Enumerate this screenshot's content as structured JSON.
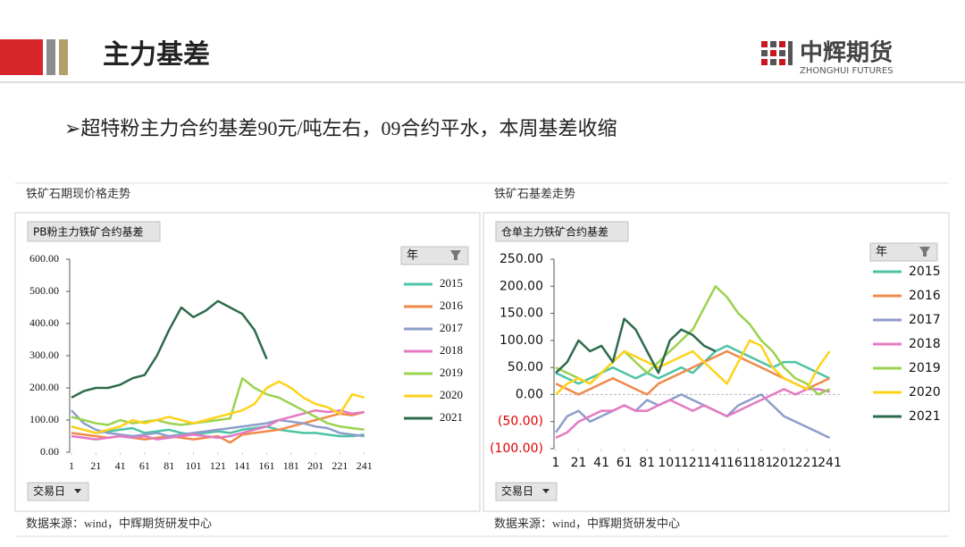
{
  "header": {
    "title": "主力基差",
    "logo": "中辉期货",
    "logo_sub": "ZHONGHUI FUTURES"
  },
  "bullet": "➢超特粉主力合约基差90元/吨左右，09合约平水，本周基差收缩",
  "chart_data": [
    {
      "type": "line",
      "caption": "铁矿石期现价格走势",
      "title": "PB粉主力铁矿合约基差",
      "legend_title": "年",
      "x_label": "交易日",
      "source": "数据来源：wind，中辉期货研发中心",
      "x": [
        1,
        11,
        21,
        31,
        41,
        51,
        61,
        71,
        81,
        91,
        101,
        111,
        121,
        131,
        141,
        151,
        161,
        171,
        181,
        191,
        201,
        211,
        221,
        231,
        241
      ],
      "xlim": [
        1,
        250
      ],
      "xticks": [
        1,
        21,
        41,
        61,
        81,
        101,
        121,
        141,
        161,
        181,
        201,
        221,
        241
      ],
      "ylim": [
        0,
        600
      ],
      "yticks": [
        {
          "value": 0,
          "label": "0.00"
        },
        {
          "value": 100,
          "label": "100.00"
        },
        {
          "value": 200,
          "label": "200.00"
        },
        {
          "value": 300,
          "label": "300.00"
        },
        {
          "value": 400,
          "label": "400.00"
        },
        {
          "value": 500,
          "label": "500.00"
        },
        {
          "value": 600,
          "label": "600.00"
        }
      ],
      "series": [
        {
          "name": "2015",
          "color": "#4dc3a5",
          "values": [
            80,
            70,
            60,
            65,
            70,
            75,
            60,
            65,
            70,
            60,
            55,
            60,
            65,
            60,
            70,
            75,
            80,
            70,
            65,
            60,
            60,
            55,
            50,
            50,
            55
          ]
        },
        {
          "name": "2016",
          "color": "#f08a4b",
          "values": [
            60,
            55,
            50,
            45,
            50,
            45,
            40,
            45,
            50,
            45,
            40,
            45,
            50,
            30,
            55,
            60,
            65,
            70,
            80,
            90,
            100,
            110,
            120,
            115,
            125
          ]
        },
        {
          "name": "2017",
          "color": "#8d9ec9",
          "values": [
            130,
            90,
            70,
            60,
            55,
            50,
            55,
            60,
            50,
            55,
            60,
            65,
            70,
            75,
            80,
            85,
            90,
            100,
            95,
            90,
            80,
            75,
            60,
            55,
            50
          ]
        },
        {
          "name": "2018",
          "color": "#e579c3",
          "values": [
            50,
            45,
            40,
            45,
            50,
            45,
            50,
            40,
            45,
            50,
            55,
            50,
            45,
            50,
            60,
            70,
            80,
            100,
            110,
            120,
            130,
            125,
            130,
            120,
            125
          ]
        },
        {
          "name": "2019",
          "color": "#9bd24e",
          "values": [
            110,
            100,
            90,
            85,
            100,
            90,
            95,
            100,
            90,
            85,
            90,
            95,
            100,
            105,
            230,
            200,
            180,
            170,
            150,
            130,
            110,
            90,
            80,
            75,
            70
          ]
        },
        {
          "name": "2020",
          "color": "#ffd21a",
          "values": [
            80,
            70,
            60,
            70,
            80,
            100,
            90,
            100,
            110,
            100,
            90,
            100,
            110,
            120,
            130,
            150,
            200,
            220,
            200,
            170,
            150,
            140,
            120,
            180,
            170
          ]
        },
        {
          "name": "2021",
          "color": "#2e6b4b",
          "values": [
            170,
            190,
            200,
            200,
            210,
            230,
            240,
            300,
            380,
            450,
            420,
            440,
            470,
            450,
            430,
            380,
            290,
            null,
            null,
            null,
            null,
            null,
            null,
            null,
            null
          ]
        }
      ]
    },
    {
      "type": "line",
      "caption": "铁矿石基差走势",
      "title": "仓单主力铁矿合约基差",
      "legend_title": "年",
      "x_label": "交易日",
      "source": "数据来源：wind，中辉期货研发中心",
      "zero_line": true,
      "negative_label_color": "#e00000",
      "x": [
        1,
        11,
        21,
        31,
        41,
        51,
        61,
        71,
        81,
        91,
        101,
        111,
        121,
        131,
        141,
        151,
        161,
        171,
        181,
        191,
        201,
        211,
        221,
        231,
        241
      ],
      "xlim": [
        1,
        250
      ],
      "xticks": [
        1,
        21,
        41,
        61,
        81,
        101,
        121,
        141,
        161,
        181,
        201,
        221,
        241
      ],
      "ylim": [
        -100,
        250
      ],
      "yticks": [
        {
          "value": -100,
          "label": "(100.00)"
        },
        {
          "value": -50,
          "label": "(50.00)"
        },
        {
          "value": 0,
          "label": "0.00"
        },
        {
          "value": 50,
          "label": "50.00"
        },
        {
          "value": 100,
          "label": "100.00"
        },
        {
          "value": 150,
          "label": "150.00"
        },
        {
          "value": 200,
          "label": "200.00"
        },
        {
          "value": 250,
          "label": "250.00"
        }
      ],
      "series": [
        {
          "name": "2015",
          "color": "#4dc3a5",
          "values": [
            40,
            30,
            20,
            30,
            40,
            50,
            40,
            30,
            40,
            30,
            40,
            50,
            40,
            60,
            80,
            90,
            80,
            70,
            60,
            50,
            60,
            60,
            50,
            40,
            30
          ]
        },
        {
          "name": "2016",
          "color": "#f08a4b",
          "values": [
            20,
            10,
            0,
            10,
            20,
            30,
            20,
            10,
            0,
            20,
            30,
            40,
            50,
            60,
            70,
            80,
            70,
            60,
            50,
            40,
            30,
            20,
            10,
            20,
            30
          ]
        },
        {
          "name": "2017",
          "color": "#8d9ec9",
          "values": [
            -70,
            -40,
            -30,
            -50,
            -40,
            -30,
            -20,
            -30,
            -10,
            -20,
            -10,
            0,
            -10,
            -20,
            -30,
            -40,
            -20,
            -10,
            0,
            -20,
            -40,
            -50,
            -60,
            -70,
            -80
          ]
        },
        {
          "name": "2018",
          "color": "#e579c3",
          "values": [
            -80,
            -70,
            -50,
            -40,
            -30,
            -30,
            -20,
            -30,
            -30,
            -20,
            -10,
            -20,
            -30,
            -20,
            -30,
            -40,
            -30,
            -20,
            -10,
            0,
            10,
            0,
            10,
            10,
            5
          ]
        },
        {
          "name": "2019",
          "color": "#9bd24e",
          "values": [
            50,
            40,
            30,
            20,
            40,
            60,
            80,
            60,
            40,
            60,
            80,
            100,
            120,
            160,
            200,
            180,
            150,
            130,
            100,
            80,
            50,
            30,
            20,
            0,
            10
          ]
        },
        {
          "name": "2020",
          "color": "#ffd21a",
          "values": [
            0,
            20,
            30,
            20,
            40,
            60,
            80,
            70,
            60,
            50,
            60,
            70,
            80,
            60,
            40,
            20,
            60,
            100,
            90,
            50,
            30,
            20,
            10,
            50,
            80
          ]
        },
        {
          "name": "2021",
          "color": "#2e6b4b",
          "values": [
            40,
            60,
            100,
            80,
            90,
            60,
            140,
            120,
            80,
            40,
            100,
            120,
            110,
            90,
            80,
            null,
            null,
            null,
            null,
            null,
            null,
            null,
            null,
            null,
            null
          ]
        }
      ]
    }
  ]
}
